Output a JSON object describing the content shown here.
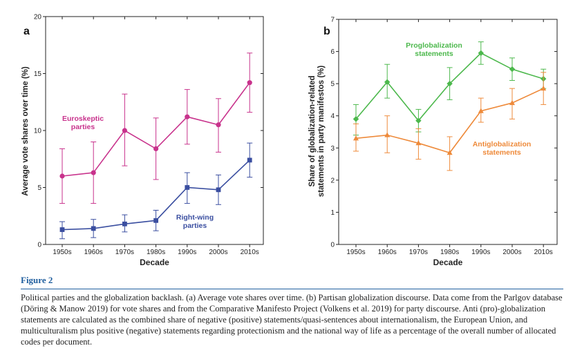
{
  "chart_data": [
    {
      "type": "line",
      "panel": "a",
      "ylabel": "Average vote shares over time (%)",
      "xlabel": "Decade",
      "categories": [
        "1950s",
        "1960s",
        "1970s",
        "1980s",
        "1990s",
        "2000s",
        "2010s"
      ],
      "ylim": [
        0,
        20
      ],
      "yticks": [
        0,
        5,
        10,
        15,
        20
      ],
      "series": [
        {
          "name": "Euroskeptic parties",
          "name_lines": [
            "Euroskeptic",
            "parties"
          ],
          "color": "#c8328c",
          "marker": "circle",
          "values": [
            6.0,
            6.3,
            10.0,
            8.4,
            11.2,
            10.5,
            14.2
          ],
          "err_low": [
            3.6,
            3.6,
            6.9,
            5.7,
            8.8,
            8.1,
            11.6
          ],
          "err_high": [
            8.4,
            9.0,
            13.2,
            11.1,
            13.6,
            12.8,
            16.8
          ]
        },
        {
          "name": "Right-wing parties",
          "name_lines": [
            "Right-wing",
            "parties"
          ],
          "color": "#3a4ea0",
          "marker": "square",
          "values": [
            1.3,
            1.4,
            1.8,
            2.1,
            5.0,
            4.8,
            7.4
          ],
          "err_low": [
            0.5,
            0.6,
            1.1,
            1.2,
            3.6,
            3.5,
            5.9
          ],
          "err_high": [
            2.0,
            2.2,
            2.6,
            3.0,
            6.3,
            6.1,
            8.9
          ]
        }
      ]
    },
    {
      "type": "line",
      "panel": "b",
      "ylabel": "Share of globalization-related statements in party manifestos (%)",
      "ylabel_lines": [
        "Share of globalization-related",
        "statements in party manifestos (%)"
      ],
      "xlabel": "Decade",
      "categories": [
        "1950s",
        "1960s",
        "1970s",
        "1980s",
        "1990s",
        "2000s",
        "2010s"
      ],
      "ylim": [
        0,
        7
      ],
      "yticks": [
        0,
        1,
        2,
        3,
        4,
        5,
        6,
        7
      ],
      "series": [
        {
          "name": "Proglobalization statements",
          "name_lines": [
            "Proglobalization",
            "statements"
          ],
          "color": "#4cb84c",
          "marker": "diamond",
          "values": [
            3.9,
            5.05,
            3.85,
            5.0,
            5.95,
            5.45,
            5.15
          ],
          "err_low": [
            3.4,
            4.55,
            3.5,
            4.5,
            5.6,
            5.1,
            4.85
          ],
          "err_high": [
            4.35,
            5.6,
            4.2,
            5.5,
            6.3,
            5.8,
            5.45
          ]
        },
        {
          "name": "Antiglobalization statements",
          "name_lines": [
            "Antiglobalization",
            "statements"
          ],
          "color": "#ee8a3a",
          "marker": "triangle",
          "values": [
            3.3,
            3.4,
            3.15,
            2.85,
            4.15,
            4.4,
            4.85
          ],
          "err_low": [
            2.9,
            2.85,
            2.65,
            2.3,
            3.8,
            3.9,
            4.35
          ],
          "err_high": [
            3.75,
            4.0,
            3.6,
            3.35,
            4.55,
            4.85,
            5.35
          ]
        }
      ]
    }
  ],
  "caption": {
    "label": "Figure 2",
    "text": "Political parties and the globalization backlash. (a) Average vote shares over time. (b) Partisan globalization discourse. Data come from the Parlgov database (Döring & Manow 2019) for vote shares and from the Comparative Manifesto Project (Volkens et al. 2019) for party discourse. Anti (pro)-globalization statements are calculated as the combined share of negative (positive) statements/quasi-sentences about internationalism, the European Union, and multiculturalism plus positive (negative) statements regarding protectionism and the national way of life as a percentage of the overall number of allocated codes per document."
  }
}
